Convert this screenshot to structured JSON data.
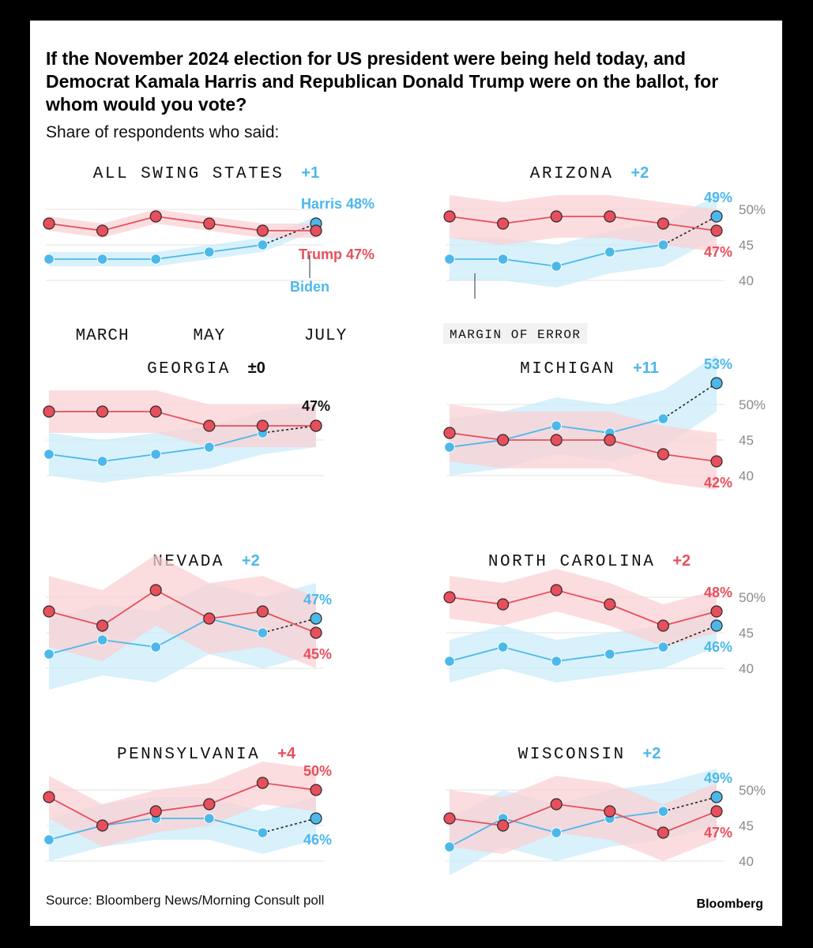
{
  "header": {
    "title": "If the November 2024 election for US president were being held today, and Democrat Kamala Harris and Republican Donald Trump were on the ballot, for whom would you vote?",
    "subtitle": "Share of respondents who said:"
  },
  "footer": {
    "source": "Source: Bloomberg News/Morning Consult poll",
    "brand": "Bloomberg"
  },
  "colors": {
    "harris": "#4cb8ea",
    "trump": "#e84f5c",
    "harris_band": "#c9ebfa",
    "trump_band": "#fbd0d3",
    "grid": "#e3e3e3",
    "tick": "#8a8a8a"
  },
  "chart_data": [
    {
      "type": "line",
      "title": "ALL SWING STATES",
      "margin_label": "+1",
      "leader": "harris",
      "x": [
        1,
        2,
        3,
        4,
        5,
        6
      ],
      "x_tick_labels": [
        "MARCH",
        "MAY",
        "JULY"
      ],
      "ylim": [
        40,
        52
      ],
      "y_ticks": [],
      "series": [
        {
          "name": "Harris",
          "party": "harris",
          "values": [
            43,
            43,
            43,
            44,
            45,
            48
          ],
          "band_low": [
            42,
            42,
            42,
            43,
            44,
            47
          ],
          "band_high": [
            44,
            44,
            44,
            45,
            46,
            49
          ],
          "end_label": "Harris 48%"
        },
        {
          "name": "Trump",
          "party": "trump",
          "values": [
            48,
            47,
            49,
            48,
            47,
            47
          ],
          "band_low": [
            47,
            46,
            48,
            47,
            46,
            46
          ],
          "band_high": [
            49,
            48,
            50,
            49,
            48,
            48
          ],
          "end_label": "Trump 47%"
        }
      ],
      "annotations": [
        {
          "text": "Biden"
        }
      ]
    },
    {
      "type": "line",
      "title": "ARIZONA",
      "margin_label": "+2",
      "leader": "harris",
      "x": [
        1,
        2,
        3,
        4,
        5,
        6
      ],
      "ylim": [
        40,
        52
      ],
      "y_ticks": [
        "50%",
        "45",
        "40"
      ],
      "series": [
        {
          "name": "Harris",
          "party": "harris",
          "values": [
            43,
            43,
            42,
            44,
            45,
            49
          ],
          "band_low": [
            40,
            40,
            39,
            41,
            42,
            46
          ],
          "band_high": [
            46,
            46,
            45,
            47,
            48,
            52
          ],
          "end_label": "49%"
        },
        {
          "name": "Trump",
          "party": "trump",
          "values": [
            49,
            48,
            49,
            49,
            48,
            47
          ],
          "band_low": [
            46,
            45,
            46,
            46,
            45,
            44
          ],
          "band_high": [
            52,
            51,
            52,
            52,
            51,
            50
          ],
          "end_label": "47%"
        }
      ],
      "annotations": [
        {
          "text": "MARGIN OF ERROR"
        }
      ]
    },
    {
      "type": "line",
      "title": "GEORGIA",
      "margin_label": "±0",
      "leader": "tie",
      "x": [
        1,
        2,
        3,
        4,
        5,
        6
      ],
      "ylim": [
        40,
        52
      ],
      "y_ticks": [],
      "series": [
        {
          "name": "Harris",
          "party": "harris",
          "values": [
            43,
            42,
            43,
            44,
            46,
            47
          ],
          "band_low": [
            40,
            39,
            40,
            41,
            43,
            44
          ],
          "band_high": [
            46,
            45,
            46,
            47,
            49,
            50
          ],
          "end_label": ""
        },
        {
          "name": "Trump",
          "party": "trump",
          "values": [
            49,
            49,
            49,
            47,
            47,
            47
          ],
          "band_low": [
            46,
            46,
            46,
            44,
            44,
            44
          ],
          "band_high": [
            52,
            52,
            52,
            50,
            50,
            50
          ],
          "end_label": "47%"
        }
      ]
    },
    {
      "type": "line",
      "title": "MICHIGAN",
      "margin_label": "+11",
      "leader": "harris",
      "x": [
        1,
        2,
        3,
        4,
        5,
        6
      ],
      "ylim": [
        40,
        52
      ],
      "y_ticks": [
        "50%",
        "45",
        "40"
      ],
      "series": [
        {
          "name": "Harris",
          "party": "harris",
          "values": [
            44,
            45,
            47,
            46,
            48,
            53
          ],
          "band_low": [
            40,
            41,
            43,
            42,
            44,
            49
          ],
          "band_high": [
            48,
            49,
            51,
            50,
            52,
            57
          ],
          "end_label": "53%"
        },
        {
          "name": "Trump",
          "party": "trump",
          "values": [
            46,
            45,
            45,
            45,
            43,
            42
          ],
          "band_low": [
            42,
            41,
            41,
            41,
            39,
            38
          ],
          "band_high": [
            50,
            49,
            49,
            49,
            47,
            46
          ],
          "end_label": "42%"
        }
      ]
    },
    {
      "type": "line",
      "title": "NEVADA",
      "margin_label": "+2",
      "leader": "harris",
      "x": [
        1,
        2,
        3,
        4,
        5,
        6
      ],
      "ylim": [
        40,
        52
      ],
      "y_ticks": [],
      "series": [
        {
          "name": "Harris",
          "party": "harris",
          "values": [
            42,
            44,
            43,
            47,
            45,
            47
          ],
          "band_low": [
            37,
            39,
            38,
            42,
            40,
            42
          ],
          "band_high": [
            47,
            49,
            48,
            52,
            50,
            52
          ],
          "end_label": "47%"
        },
        {
          "name": "Trump",
          "party": "trump",
          "values": [
            48,
            46,
            51,
            47,
            48,
            45
          ],
          "band_low": [
            43,
            41,
            46,
            42,
            43,
            40
          ],
          "band_high": [
            53,
            51,
            56,
            52,
            53,
            50
          ],
          "end_label": "45%"
        }
      ]
    },
    {
      "type": "line",
      "title": "NORTH CAROLINA",
      "margin_label": "+2",
      "leader": "trump",
      "x": [
        1,
        2,
        3,
        4,
        5,
        6
      ],
      "ylim": [
        40,
        52
      ],
      "y_ticks": [
        "50%",
        "45",
        "40"
      ],
      "series": [
        {
          "name": "Harris",
          "party": "harris",
          "values": [
            41,
            43,
            41,
            42,
            43,
            46
          ],
          "band_low": [
            38,
            40,
            38,
            39,
            40,
            43
          ],
          "band_high": [
            44,
            46,
            44,
            45,
            46,
            49
          ],
          "end_label": "46%"
        },
        {
          "name": "Trump",
          "party": "trump",
          "values": [
            50,
            49,
            51,
            49,
            46,
            48
          ],
          "band_low": [
            47,
            46,
            48,
            46,
            43,
            45
          ],
          "band_high": [
            53,
            52,
            54,
            52,
            49,
            51
          ],
          "end_label": "48%"
        }
      ]
    },
    {
      "type": "line",
      "title": "PENNSYLVANIA",
      "margin_label": "+4",
      "leader": "trump",
      "x": [
        1,
        2,
        3,
        4,
        5,
        6
      ],
      "ylim": [
        40,
        52
      ],
      "y_ticks": [],
      "series": [
        {
          "name": "Harris",
          "party": "harris",
          "values": [
            43,
            45,
            46,
            46,
            44,
            46
          ],
          "band_low": [
            40,
            42,
            43,
            43,
            41,
            43
          ],
          "band_high": [
            46,
            48,
            49,
            49,
            47,
            49
          ],
          "end_label": "46%"
        },
        {
          "name": "Trump",
          "party": "trump",
          "values": [
            49,
            45,
            47,
            48,
            51,
            50
          ],
          "band_low": [
            46,
            42,
            44,
            45,
            48,
            47
          ],
          "band_high": [
            52,
            48,
            50,
            51,
            54,
            53
          ],
          "end_label": "50%"
        }
      ]
    },
    {
      "type": "line",
      "title": "WISCONSIN",
      "margin_label": "+2",
      "leader": "harris",
      "x": [
        1,
        2,
        3,
        4,
        5,
        6
      ],
      "ylim": [
        40,
        52
      ],
      "y_ticks": [
        "50%",
        "45",
        "40"
      ],
      "series": [
        {
          "name": "Harris",
          "party": "harris",
          "values": [
            42,
            46,
            44,
            46,
            47,
            49
          ],
          "band_low": [
            38,
            42,
            40,
            42,
            43,
            45
          ],
          "band_high": [
            46,
            50,
            48,
            50,
            51,
            53
          ],
          "end_label": "49%"
        },
        {
          "name": "Trump",
          "party": "trump",
          "values": [
            46,
            45,
            48,
            47,
            44,
            47
          ],
          "band_low": [
            42,
            41,
            44,
            43,
            40,
            43
          ],
          "band_high": [
            50,
            49,
            52,
            51,
            48,
            51
          ],
          "end_label": "47%"
        }
      ]
    }
  ]
}
